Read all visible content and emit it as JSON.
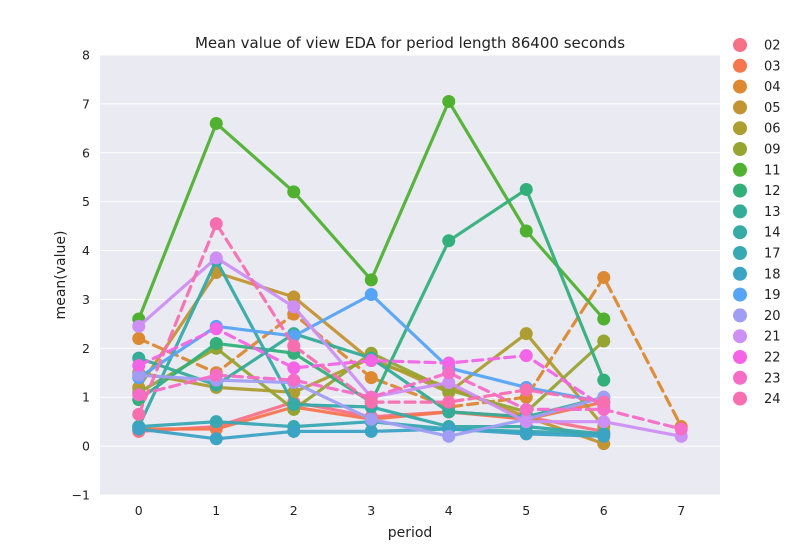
{
  "chart_data": {
    "type": "line",
    "title": "Mean value of view EDA for period length 86400 seconds",
    "xlabel": "period",
    "ylabel": "mean(value)",
    "x": [
      0,
      1,
      2,
      3,
      4,
      5,
      6,
      7
    ],
    "xlim": [
      -0.5,
      7.5
    ],
    "ylim": [
      -1,
      8
    ],
    "yticks": [
      -1,
      0,
      1,
      2,
      3,
      4,
      5,
      6,
      7,
      8
    ],
    "grid": true,
    "legend_position": "right",
    "background": "#eaeaf2",
    "series": [
      {
        "name": "02",
        "color": "#f77189",
        "dashed": false,
        "values": [
          0.3,
          0.4,
          0.9,
          0.6,
          0.7,
          0.6,
          0.3,
          null
        ]
      },
      {
        "name": "03",
        "color": "#f7754f",
        "dashed": false,
        "values": [
          0.35,
          0.35,
          0.8,
          0.55,
          0.7,
          0.55,
          0.9,
          null
        ]
      },
      {
        "name": "04",
        "color": "#dc8932",
        "dashed": true,
        "values": [
          2.2,
          1.5,
          2.7,
          1.4,
          0.8,
          1.0,
          3.45,
          0.4
        ]
      },
      {
        "name": "05",
        "color": "#c39532",
        "dashed": false,
        "values": [
          1.2,
          3.55,
          3.05,
          1.75,
          1.2,
          0.6,
          0.05,
          null
        ]
      },
      {
        "name": "06",
        "color": "#ae9d31",
        "dashed": false,
        "values": [
          1.5,
          1.2,
          1.1,
          1.8,
          1.1,
          2.3,
          0.4,
          null
        ]
      },
      {
        "name": "09",
        "color": "#97a431",
        "dashed": false,
        "values": [
          1.1,
          2.0,
          0.75,
          1.9,
          1.15,
          0.7,
          2.15,
          null
        ]
      },
      {
        "name": "11",
        "color": "#50b131",
        "dashed": false,
        "values": [
          2.6,
          6.6,
          5.2,
          3.4,
          7.05,
          4.4,
          2.6,
          null
        ]
      },
      {
        "name": "12",
        "color": "#33b07a",
        "dashed": false,
        "values": [
          0.95,
          2.1,
          1.9,
          0.9,
          4.2,
          5.25,
          1.35,
          null
        ]
      },
      {
        "name": "13",
        "color": "#35ac97",
        "dashed": false,
        "values": [
          1.8,
          1.25,
          2.3,
          1.8,
          0.7,
          0.6,
          1.0,
          null
        ]
      },
      {
        "name": "14",
        "color": "#36aaa6",
        "dashed": false,
        "values": [
          0.4,
          3.8,
          0.85,
          0.8,
          0.4,
          0.4,
          0.25,
          null
        ]
      },
      {
        "name": "17",
        "color": "#38a8b3",
        "dashed": false,
        "values": [
          0.4,
          0.5,
          0.4,
          0.5,
          0.35,
          0.3,
          0.25,
          null
        ]
      },
      {
        "name": "18",
        "color": "#3ba3c4",
        "dashed": false,
        "values": [
          0.35,
          0.15,
          0.3,
          0.3,
          0.35,
          0.25,
          0.2,
          null
        ]
      },
      {
        "name": "19",
        "color": "#56a4f4",
        "dashed": false,
        "values": [
          1.4,
          2.45,
          2.25,
          3.1,
          1.6,
          1.2,
          0.9,
          null
        ]
      },
      {
        "name": "20",
        "color": "#a09ef4",
        "dashed": false,
        "values": [
          1.45,
          1.35,
          1.3,
          0.55,
          0.2,
          0.55,
          1.0,
          null
        ]
      },
      {
        "name": "21",
        "color": "#cd8ff4",
        "dashed": false,
        "values": [
          2.45,
          3.85,
          2.85,
          1.0,
          1.3,
          0.5,
          0.5,
          0.2
        ]
      },
      {
        "name": "22",
        "color": "#f365e6",
        "dashed": true,
        "values": [
          1.65,
          2.4,
          1.6,
          1.75,
          1.7,
          1.85,
          0.8,
          null
        ]
      },
      {
        "name": "23",
        "color": "#f66dc7",
        "dashed": true,
        "values": [
          1.05,
          1.45,
          1.35,
          1.0,
          1.5,
          0.75,
          0.75,
          0.35
        ]
      },
      {
        "name": "24",
        "color": "#f86fb0",
        "dashed": true,
        "values": [
          0.65,
          4.55,
          2.05,
          0.9,
          0.9,
          1.15,
          0.9,
          null
        ]
      }
    ]
  }
}
